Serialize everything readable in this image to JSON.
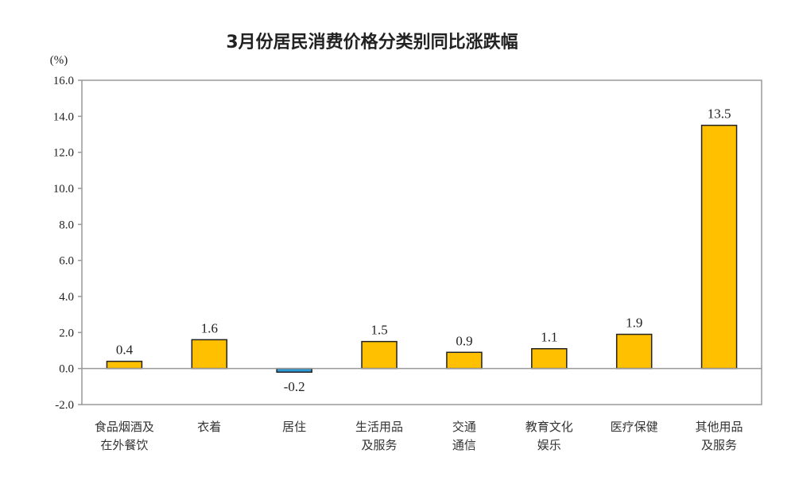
{
  "chart_data": {
    "type": "bar",
    "title": "3月份居民消费价格分类别同比涨跌幅",
    "ylabel": "(%)",
    "xlabel": "",
    "ylim": [
      -2,
      16
    ],
    "yticks": [
      -2,
      0,
      2,
      4,
      6,
      8,
      10,
      12,
      14,
      16
    ],
    "ytick_labels": [
      "-2.0",
      "0.0",
      "2.0",
      "4.0",
      "6.0",
      "8.0",
      "10.0",
      "12.0",
      "14.0",
      "16.0"
    ],
    "categories": [
      [
        "食品烟酒及",
        "在外餐饮"
      ],
      [
        "衣着"
      ],
      [
        "居住"
      ],
      [
        "生活用品",
        "及服务"
      ],
      [
        "交通",
        "通信"
      ],
      [
        "教育文化",
        "娱乐"
      ],
      [
        "医疗保健"
      ],
      [
        "其他用品",
        "及服务"
      ]
    ],
    "values": [
      0.4,
      1.6,
      -0.2,
      1.5,
      0.9,
      1.1,
      1.9,
      13.5
    ],
    "data_labels": [
      "0.4",
      "1.6",
      "-0.2",
      "1.5",
      "0.9",
      "1.1",
      "1.9",
      "13.5"
    ],
    "grid": false,
    "colors": {
      "positive": "#FFC000",
      "negative": "#2E9BD6",
      "bar_edge": "#222222",
      "axis": "#999999"
    }
  }
}
